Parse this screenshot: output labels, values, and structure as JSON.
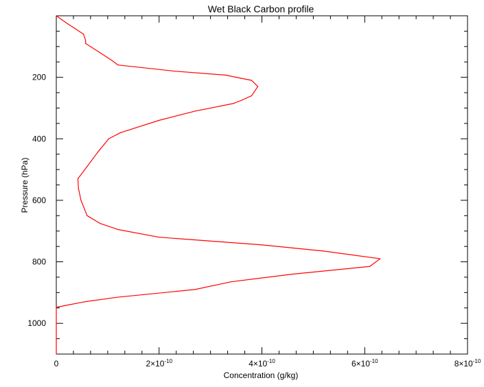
{
  "chart_data": {
    "type": "line",
    "title": "Wet Black Carbon profile",
    "xlabel": "Concentration (g/kg)",
    "ylabel": "Pressure (hPa)",
    "xlim": [
      0,
      8e-10
    ],
    "ylim": [
      1100,
      0
    ],
    "y_inverted": true,
    "x_ticks": [
      {
        "value": 0,
        "mantissa": "0",
        "exponent": ""
      },
      {
        "value": 2e-10,
        "mantissa": "2×10",
        "exponent": "-10"
      },
      {
        "value": 4e-10,
        "mantissa": "4×10",
        "exponent": "-10"
      },
      {
        "value": 6e-10,
        "mantissa": "6×10",
        "exponent": "-10"
      },
      {
        "value": 8e-10,
        "mantissa": "8×10",
        "exponent": "-10"
      }
    ],
    "y_ticks": [
      {
        "value": 200,
        "label": "200"
      },
      {
        "value": 400,
        "label": "400"
      },
      {
        "value": 600,
        "label": "600"
      },
      {
        "value": 800,
        "label": "800"
      },
      {
        "value": 1000,
        "label": "1000"
      }
    ],
    "grid": false,
    "line_color": "#ff0000",
    "series": [
      {
        "x": [
          0,
          1.1e-11,
          2.3e-11,
          3.5e-11,
          5.3e-11,
          5.7e-11,
          5.7e-11,
          8.5e-11,
          1.08e-10,
          1.2e-10,
          2.3e-10,
          3.3e-10,
          3.5e-10,
          3.8e-10,
          3.92e-10,
          3.8e-10,
          3.6e-10,
          3.45e-10,
          2.7e-10,
          2e-10,
          1.25e-10,
          1.02e-10,
          8e-11,
          6e-11,
          4.2e-11,
          4.3e-11,
          4.8e-11,
          6e-11,
          8.5e-11,
          1.2e-10,
          2e-10,
          4e-10,
          5.2e-10,
          6.3e-10,
          6.1e-10,
          4.6e-10,
          3.4e-10,
          2.7e-10,
          1.2e-10,
          5.5e-11,
          1.5e-11,
          0,
          0
        ],
        "y": [
          0,
          13,
          27,
          40,
          60,
          80,
          90,
          120,
          145,
          160,
          180,
          193,
          200,
          210,
          230,
          260,
          275,
          285,
          310,
          340,
          380,
          400,
          445,
          490,
          530,
          560,
          600,
          650,
          675,
          695,
          720,
          745,
          765,
          790,
          815,
          840,
          865,
          890,
          915,
          930,
          943,
          948,
          1100
        ]
      }
    ]
  }
}
